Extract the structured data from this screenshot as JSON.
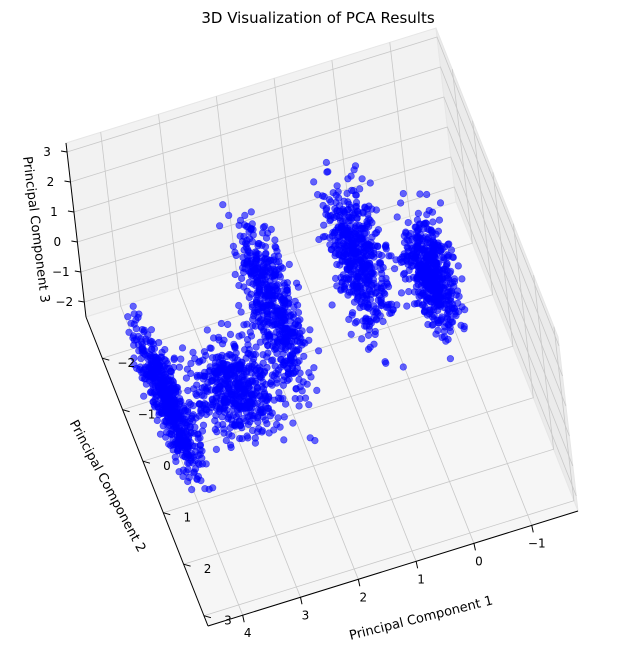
{
  "chart_data": {
    "type": "scatter",
    "projection": "3d",
    "title": "3D Visualization of PCA Results",
    "xlabel": "Principal Component 1",
    "ylabel": "Principal Component 2",
    "zlabel": "Principal Component 3",
    "x_ticks": [
      "−1",
      "0",
      "1",
      "2",
      "3",
      "4"
    ],
    "y_ticks": [
      "−2",
      "−1",
      "0",
      "1",
      "2",
      "3"
    ],
    "z_ticks": [
      "−2",
      "−1",
      "0",
      "1",
      "2",
      "3"
    ],
    "xlim": [
      -1.8,
      4.6
    ],
    "ylim": [
      -2.8,
      3.2
    ],
    "zlim": [
      -2.5,
      3.3
    ],
    "grid": true,
    "marker_color": "#0000ff",
    "marker_alpha": 0.6,
    "series": [
      {
        "clusters": [
          {
            "x_range": [
              3.8,
              4.5
            ],
            "y_range": [
              -1.7,
              2.3
            ],
            "z_range": [
              -1.0,
              0.5
            ]
          },
          {
            "x_range": [
              2.0,
              4.0
            ],
            "y_range": [
              -1.0,
              1.3
            ],
            "z_range": [
              -2.0,
              0.5
            ]
          },
          {
            "x_range": [
              1.5,
              2.5
            ],
            "y_range": [
              -2.5,
              1.5
            ],
            "z_range": [
              -2.0,
              2.5
            ]
          },
          {
            "x_range": [
              -0.2,
              1.0
            ],
            "y_range": [
              -2.5,
              0.7
            ],
            "z_range": [
              -2.0,
              2.8
            ]
          },
          {
            "x_range": [
              -1.2,
              -0.2
            ],
            "y_range": [
              -1.7,
              0.6
            ],
            "z_range": [
              -2.3,
              1.5
            ]
          }
        ]
      }
    ]
  }
}
